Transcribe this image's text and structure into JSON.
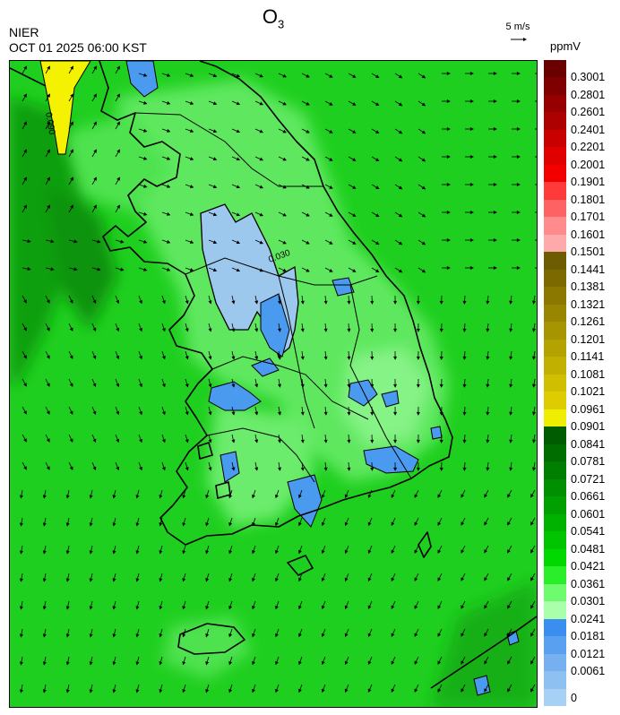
{
  "header": {
    "title_base": "O",
    "title_sub": "3",
    "org": "NIER",
    "timestamp": "OCT 01 2025 06:00 KST",
    "ref_vector_label": "5 m/s",
    "unit": "ppmV"
  },
  "map": {
    "contour_labels": [
      "0.090",
      "0.030"
    ],
    "colors": {
      "background_green": "#1fcf1f",
      "light_green": "#7ef27e",
      "dark_green": "#0f9f0f",
      "blue_low": "#9cc8ee",
      "blue_mid": "#4a9bef",
      "yellow_high": "#f4f200",
      "coastline": "#000000"
    }
  },
  "legend": {
    "ticks": [
      "0.3001",
      "0.2801",
      "0.2601",
      "0.2401",
      "0.2201",
      "0.2001",
      "0.1901",
      "0.1801",
      "0.1701",
      "0.1601",
      "0.1501",
      "0.1441",
      "0.1381",
      "0.1321",
      "0.1261",
      "0.1201",
      "0.1141",
      "0.1081",
      "0.1021",
      "0.0961",
      "0.0901",
      "0.0841",
      "0.0781",
      "0.0721",
      "0.0661",
      "0.0601",
      "0.0541",
      "0.0481",
      "0.0421",
      "0.0361",
      "0.0301",
      "0.0241",
      "0.0181",
      "0.0121",
      "0.0061",
      "0"
    ],
    "colors": [
      "#6a0000",
      "#7e0000",
      "#960000",
      "#ad0000",
      "#c80000",
      "#e00000",
      "#f20000",
      "#ff3a3a",
      "#ff6262",
      "#ff8c8c",
      "#ffaaaa",
      "#6e5d00",
      "#7c6a00",
      "#8a7800",
      "#988600",
      "#a69400",
      "#b4a200",
      "#c2b000",
      "#d0be00",
      "#decc00",
      "#f0ee00",
      "#005c00",
      "#006d00",
      "#007e00",
      "#008f00",
      "#00a000",
      "#00b200",
      "#00c400",
      "#00d800",
      "#2bee2b",
      "#6efb6e",
      "#aaffaa",
      "#3a8ef0",
      "#5aa0f0",
      "#76b0f0",
      "#8ec0f2",
      "#a6d0f4"
    ]
  }
}
